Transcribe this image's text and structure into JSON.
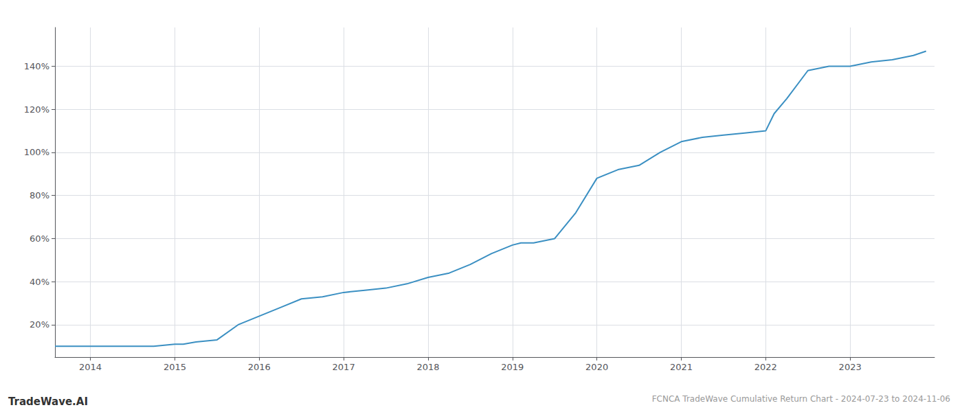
{
  "chart_data": {
    "type": "line",
    "title": "FCNCA TradeWave Cumulative Return Chart - 2024-07-23 to 2024-11-06",
    "annotations": [
      "TradeWave.AI"
    ],
    "color": "#3a8fc2",
    "x": [
      2013.58,
      2014.0,
      2014.25,
      2014.5,
      2014.75,
      2015.0,
      2015.1,
      2015.25,
      2015.5,
      2015.75,
      2016.0,
      2016.25,
      2016.5,
      2016.75,
      2017.0,
      2017.25,
      2017.5,
      2017.75,
      2018.0,
      2018.25,
      2018.5,
      2018.75,
      2019.0,
      2019.1,
      2019.25,
      2019.5,
      2019.75,
      2020.0,
      2020.25,
      2020.5,
      2020.75,
      2021.0,
      2021.25,
      2021.5,
      2021.75,
      2022.0,
      2022.1,
      2022.25,
      2022.5,
      2022.75,
      2023.0,
      2023.25,
      2023.5,
      2023.75,
      2023.9
    ],
    "values": [
      10,
      10,
      10,
      10,
      10,
      11,
      11,
      12,
      13,
      20,
      24,
      28,
      32,
      33,
      35,
      36,
      37,
      39,
      42,
      44,
      48,
      53,
      57,
      58,
      58,
      60,
      72,
      88,
      92,
      94,
      100,
      105,
      107,
      108,
      109,
      110,
      118,
      125,
      138,
      140,
      140,
      142,
      143,
      145,
      147
    ],
    "xlim": [
      2013.58,
      2024.0
    ],
    "xticks": [
      2014,
      2015,
      2016,
      2017,
      2018,
      2019,
      2020,
      2021,
      2022,
      2023
    ],
    "ylim": [
      5,
      158
    ],
    "yticks": [
      {
        "value": 20,
        "label": "20%"
      },
      {
        "value": 40,
        "label": "40%"
      },
      {
        "value": 60,
        "label": "60%"
      },
      {
        "value": 80,
        "label": "80%"
      },
      {
        "value": 100,
        "label": "100%"
      },
      {
        "value": 120,
        "label": "120%"
      },
      {
        "value": 140,
        "label": "140%"
      }
    ],
    "grid": true
  }
}
